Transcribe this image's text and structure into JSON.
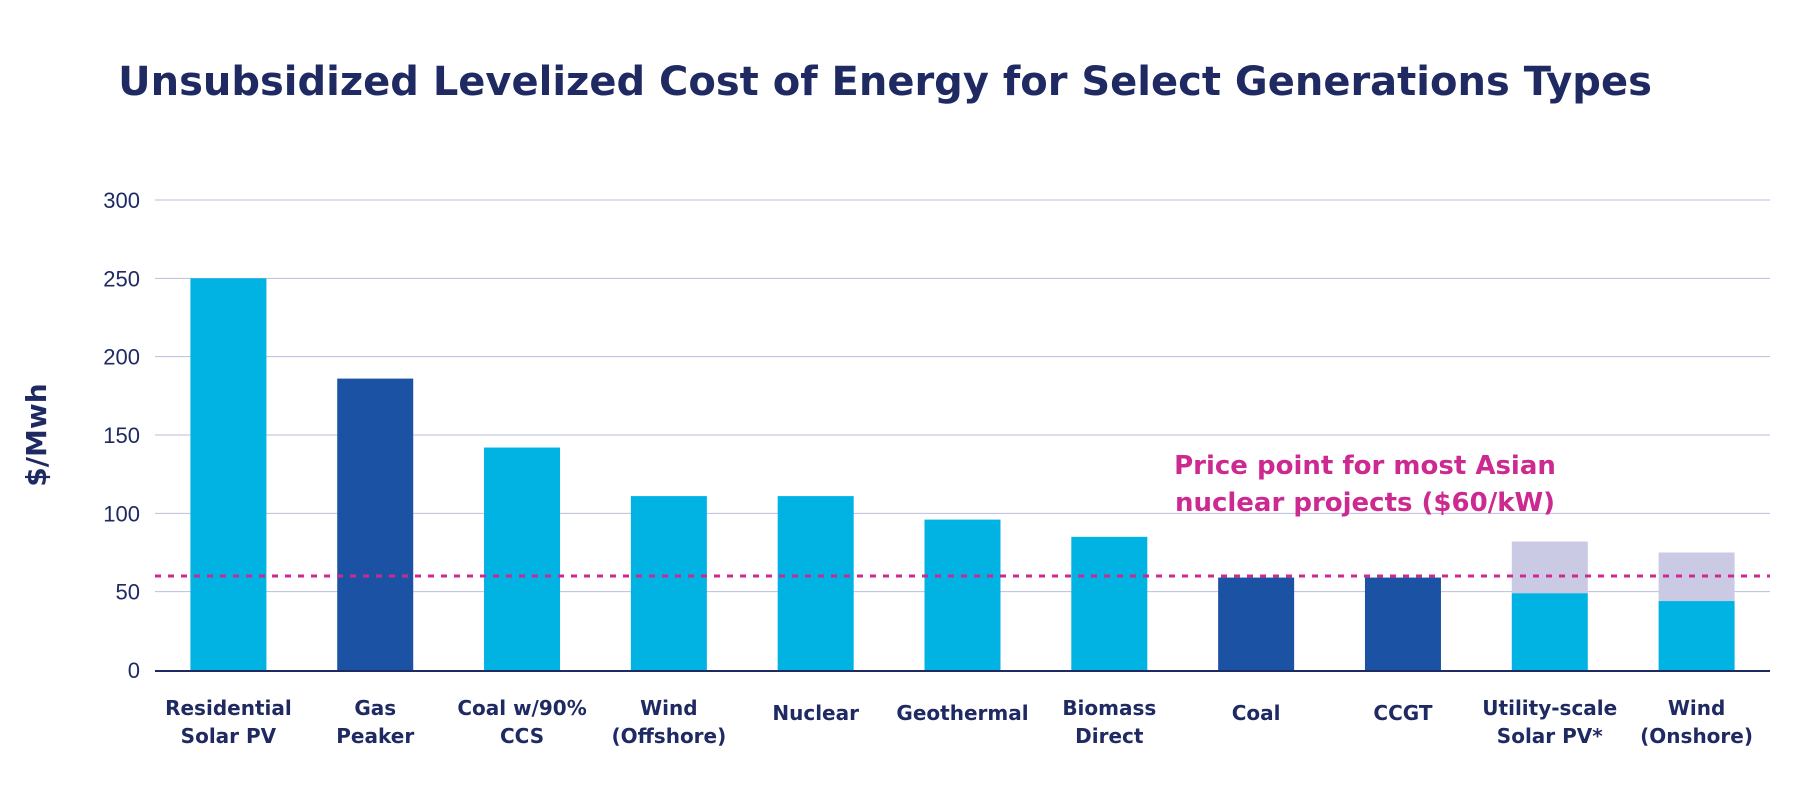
{
  "chart_data": {
    "type": "bar",
    "title": "Unsubsidized Levelized Cost of Energy for Select Generations Types",
    "ylabel": "$/Mwh",
    "xlabel": "",
    "ylim": [
      0,
      300
    ],
    "yticks": [
      "0",
      "50",
      "100",
      "150",
      "200",
      "250",
      "300"
    ],
    "grid": true,
    "categories": [
      [
        "Residential",
        "Solar PV"
      ],
      [
        "Gas",
        "Peaker"
      ],
      [
        "Coal w/90%",
        "CCS"
      ],
      [
        "Wind",
        "(Offshore)"
      ],
      [
        "Nuclear"
      ],
      [
        "Geothermal"
      ],
      [
        "Biomass",
        "Direct"
      ],
      [
        "Coal"
      ],
      [
        "CCGT"
      ],
      [
        "Utility-scale",
        "Solar PV*"
      ],
      [
        "Wind",
        "(Onshore)"
      ]
    ],
    "values": [
      250,
      186,
      142,
      111,
      111,
      96,
      85,
      59,
      59,
      49,
      44
    ],
    "range_high": [
      null,
      null,
      null,
      null,
      null,
      null,
      null,
      null,
      null,
      82,
      75
    ],
    "bar_colors": [
      "#00b3e3",
      "#1b52a3",
      "#00b3e3",
      "#00b3e3",
      "#00b3e3",
      "#00b3e3",
      "#00b3e3",
      "#1b52a3",
      "#1b52a3",
      "#00b3e3",
      "#00b3e3"
    ],
    "range_color": "#cbcae4",
    "reference_line": {
      "value": 60,
      "color": "#cc2a91",
      "style": "dotted",
      "label": [
        "Price point for most Asian",
        "nuclear projects ($60/kW)"
      ]
    },
    "colors": {
      "text": "#1f2a63",
      "grid": "#b9bedb",
      "axis": "#1f2a63"
    }
  }
}
